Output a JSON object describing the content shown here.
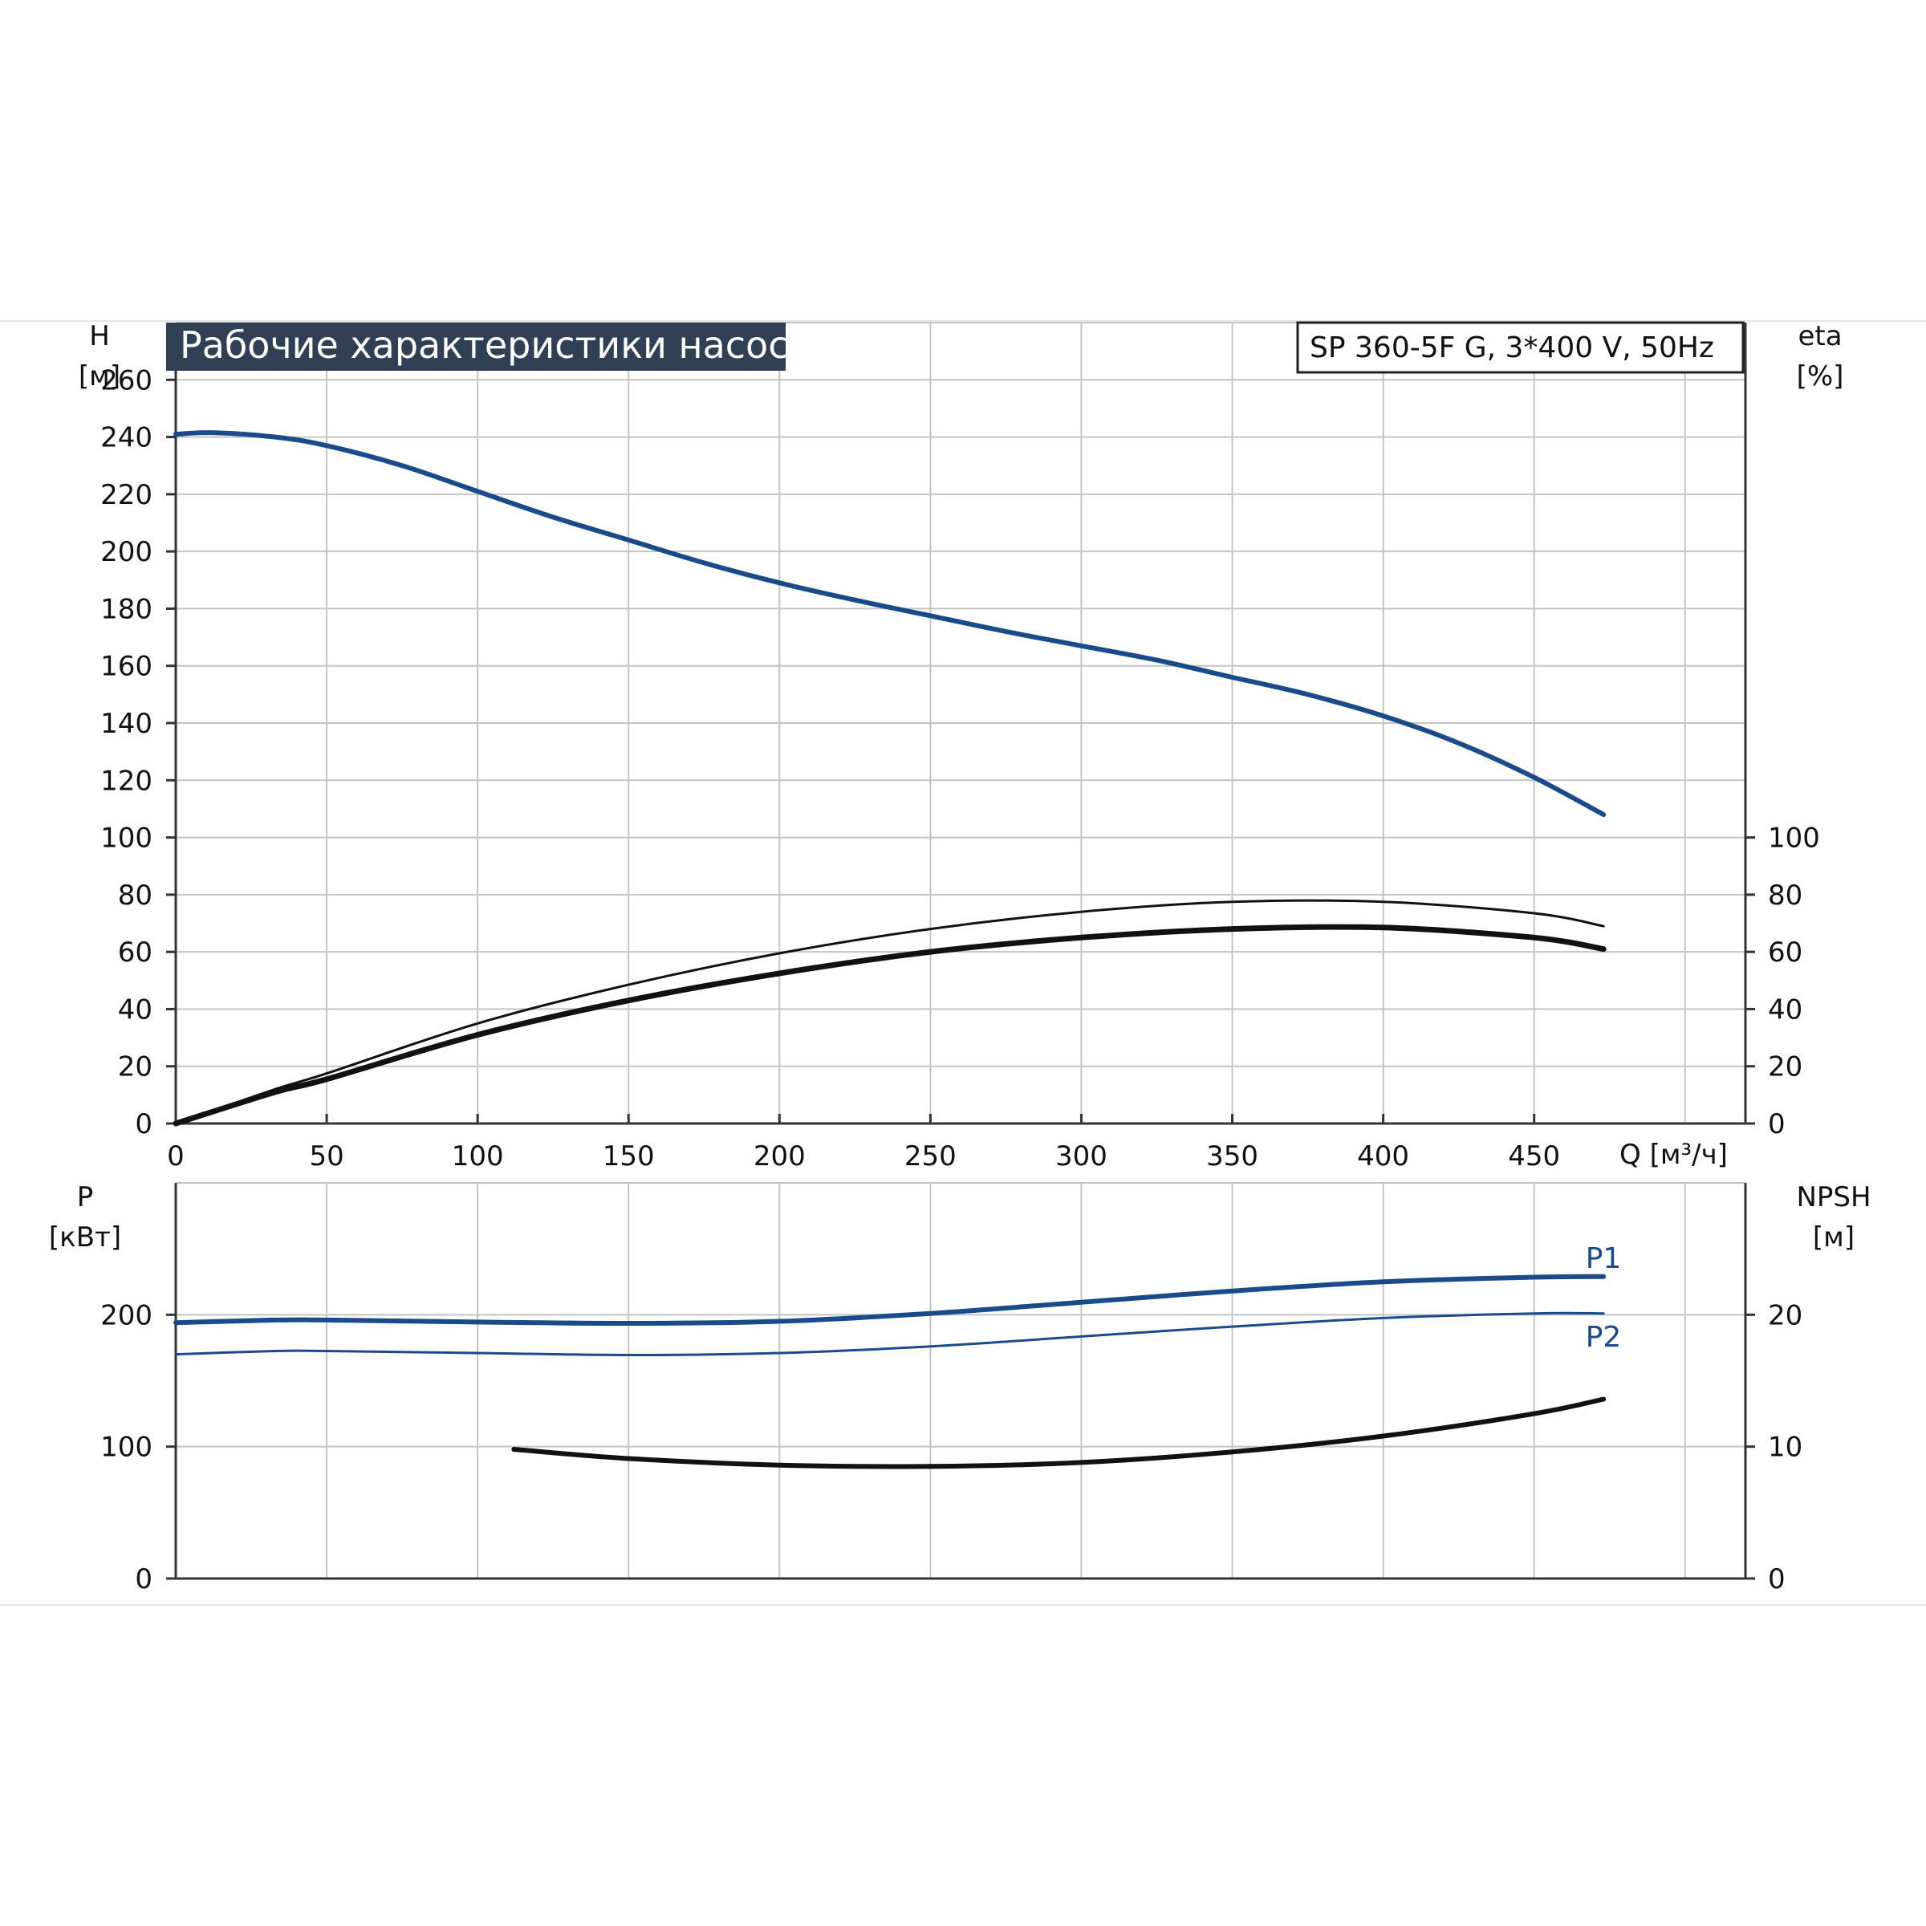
{
  "colors": {
    "title_bg": "#2f4055",
    "blue": "#1a4a8a",
    "black": "#111111",
    "grid": "#c4c4c4"
  },
  "header": {
    "title": "Рабочие характеристики насоса",
    "model": "SP 360-5F G, 3*400 V, 50Hz"
  },
  "chart_data": [
    {
      "type": "line",
      "x_label": "Q [м³/ч]",
      "x_ticks": [
        "0",
        "50",
        "100",
        "150",
        "200",
        "250",
        "300",
        "350",
        "400",
        "450"
      ],
      "xlim": [
        0,
        520
      ],
      "y_left": {
        "label_top": "H",
        "label_unit": "[м]",
        "lim": [
          0,
          280
        ],
        "ticks": [
          "0",
          "20",
          "40",
          "60",
          "80",
          "100",
          "120",
          "140",
          "160",
          "180",
          "200",
          "220",
          "240",
          "260"
        ]
      },
      "y_right": {
        "label_top": "eta",
        "label_unit": "[%]",
        "lim": [
          0,
          280
        ],
        "ticks": [
          "0",
          "20",
          "40",
          "60",
          "80",
          "100"
        ]
      },
      "grid": true,
      "series": [
        {
          "axis": "left",
          "color": "#1a4a8a",
          "width": 6,
          "x": [
            0,
            13,
            33,
            50,
            75,
            100,
            125,
            150,
            175,
            200,
            225,
            250,
            275,
            300,
            325,
            350,
            375,
            400,
            425,
            450,
            473
          ],
          "y": [
            241,
            241.5,
            240,
            237,
            230,
            221,
            212,
            204,
            196,
            189,
            183,
            177.5,
            172,
            167,
            162,
            156,
            150,
            142.5,
            133,
            121,
            108
          ]
        },
        {
          "axis": "right",
          "color": "#111111",
          "width": 3,
          "x": [
            0,
            33,
            50,
            100,
            150,
            200,
            250,
            300,
            350,
            400,
            450,
            473
          ],
          "y": [
            0,
            12,
            17.5,
            35,
            48.5,
            59.5,
            68,
            74,
            77.5,
            77.5,
            73.5,
            69
          ]
        },
        {
          "axis": "right",
          "color": "#111111",
          "width": 7,
          "x": [
            0,
            33,
            50,
            100,
            150,
            200,
            250,
            300,
            350,
            400,
            450,
            473
          ],
          "y": [
            0,
            11,
            15.5,
            31,
            43,
            52.5,
            60,
            65,
            68,
            68.5,
            65,
            61
          ]
        }
      ]
    },
    {
      "type": "line",
      "x_lim": [
        0,
        520
      ],
      "y_left": {
        "label_top": "P",
        "label_unit": "[кВт]",
        "lim": [
          0,
          300
        ],
        "ticks": [
          "0",
          "100",
          "200"
        ]
      },
      "y_right": {
        "label_top": "NPSH",
        "label_unit": "[м]",
        "lim": [
          0,
          30
        ],
        "ticks": [
          "0",
          "10",
          "20"
        ]
      },
      "grid": true,
      "series": [
        {
          "name": "P1",
          "axis": "left",
          "color": "#1a4a8a",
          "width": 6,
          "x": [
            0,
            33,
            50,
            100,
            150,
            200,
            250,
            300,
            350,
            400,
            450,
            473
          ],
          "y": [
            194,
            196,
            196,
            194.5,
            193.5,
            195,
            201,
            209.5,
            218,
            225,
            228.5,
            229
          ]
        },
        {
          "name": "P2",
          "axis": "left",
          "color": "#1a4a8a",
          "width": 3,
          "x": [
            0,
            33,
            50,
            100,
            150,
            200,
            250,
            300,
            350,
            400,
            450,
            473
          ],
          "y": [
            170,
            172.5,
            172.5,
            171,
            169.5,
            171,
            176,
            183.5,
            191,
            197.5,
            201,
            201
          ]
        },
        {
          "axis": "right",
          "color": "#111111",
          "width": 6,
          "x": [
            112,
            150,
            200,
            250,
            300,
            350,
            400,
            450,
            473
          ],
          "y": [
            9.8,
            9.1,
            8.6,
            8.5,
            8.8,
            9.6,
            10.8,
            12.5,
            13.6
          ]
        }
      ]
    }
  ]
}
